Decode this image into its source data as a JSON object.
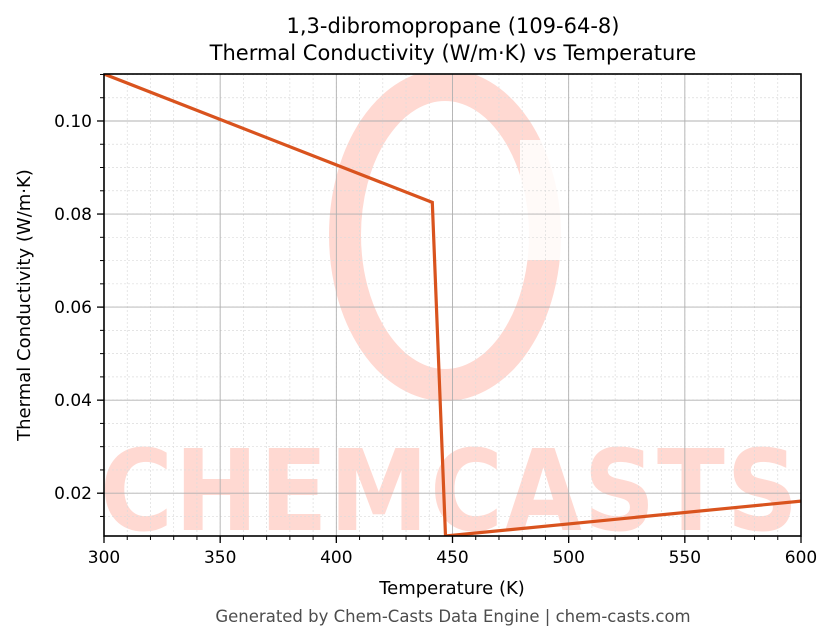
{
  "title": {
    "line1": "1,3-dibromopropane (109-64-8)",
    "line2": "Thermal Conductivity (W/m·K) vs Temperature"
  },
  "footer": "Generated by Chem-Casts Data Engine | chem-casts.com",
  "watermark": "CHEMCASTS",
  "colors": {
    "line": "#d9531e",
    "watermark": "#ffd9d2",
    "grid_major": "#b0b0b0",
    "grid_minor": "#dcdcdc",
    "axis": "#000000"
  },
  "chart_data": {
    "type": "line",
    "title": "1,3-dibromopropane (109-64-8)\nThermal Conductivity (W/m·K) vs Temperature",
    "xlabel": "Temperature (K)",
    "ylabel": "Thermal Conductivity (W/m·K)",
    "xlim": [
      300,
      600
    ],
    "ylim": [
      0.0108,
      0.1101
    ],
    "x_ticks": [
      300,
      350,
      400,
      450,
      500,
      550,
      600
    ],
    "x_tick_labels": [
      "300",
      "350",
      "400",
      "450",
      "500",
      "550",
      "600"
    ],
    "y_ticks": [
      0.02,
      0.04,
      0.06,
      0.08,
      0.1
    ],
    "y_tick_labels": [
      "0.02",
      "0.04",
      "0.06",
      "0.08",
      "0.10"
    ],
    "grid": true,
    "legend": null,
    "series": [
      {
        "name": "Thermal Conductivity",
        "x": [
          300,
          441.3,
          447.0,
          600
        ],
        "y": [
          0.1101,
          0.0825,
          0.0108,
          0.0183
        ]
      }
    ]
  }
}
